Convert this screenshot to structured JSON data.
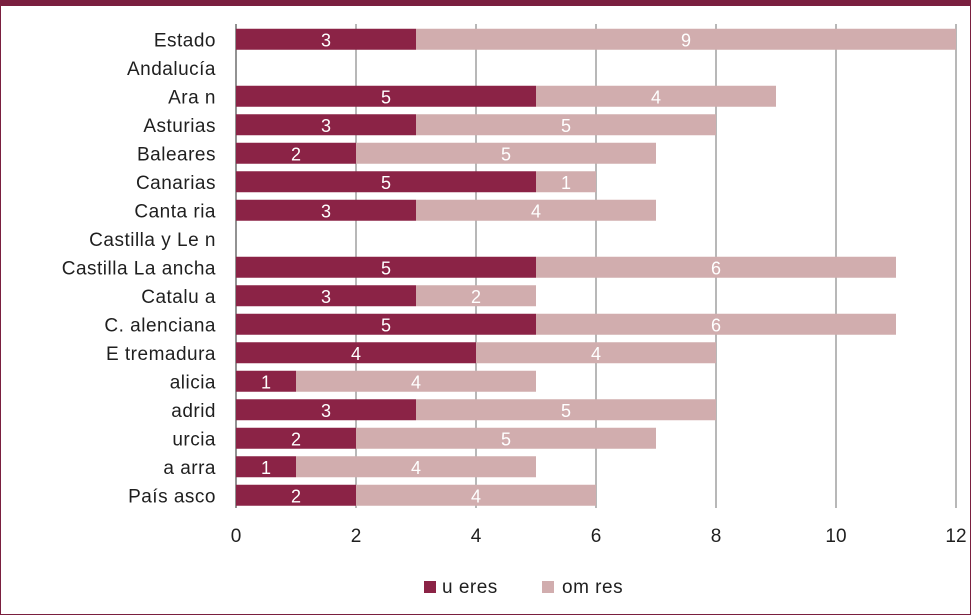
{
  "colors": {
    "frame": "#7a1f3f",
    "series_a": "#8b2346",
    "series_b": "#d1adae",
    "grid": "#a0a0a0",
    "axis": "#6f6f6f"
  },
  "chart_data": {
    "type": "bar",
    "orientation": "horizontal",
    "stacked": true,
    "categories": [
      "Estado",
      "Andalucía",
      "Ara   n",
      "Asturias",
      "Baleares",
      "Canarias",
      "Canta  ria",
      "Castilla y Le  n",
      "Castilla La    ancha",
      "Catalu  a",
      "C.     alenciana",
      "E  tremadura",
      "alicia",
      "adrid",
      "urcia",
      "a  arra",
      "País    asco"
    ],
    "series": [
      {
        "name": "u eres",
        "values": [
          3,
          null,
          5,
          3,
          2,
          5,
          3,
          null,
          5,
          3,
          5,
          4,
          1,
          3,
          2,
          1,
          2
        ]
      },
      {
        "name": "om  res",
        "values": [
          9,
          null,
          4,
          5,
          5,
          1,
          4,
          null,
          6,
          2,
          6,
          4,
          4,
          5,
          5,
          4,
          4
        ]
      }
    ],
    "xlim": [
      0,
      12
    ],
    "xticks": [
      "0",
      "2",
      "4",
      "6",
      "8",
      "10",
      "12"
    ],
    "grid": "vertical",
    "legend": "bottom-center"
  }
}
